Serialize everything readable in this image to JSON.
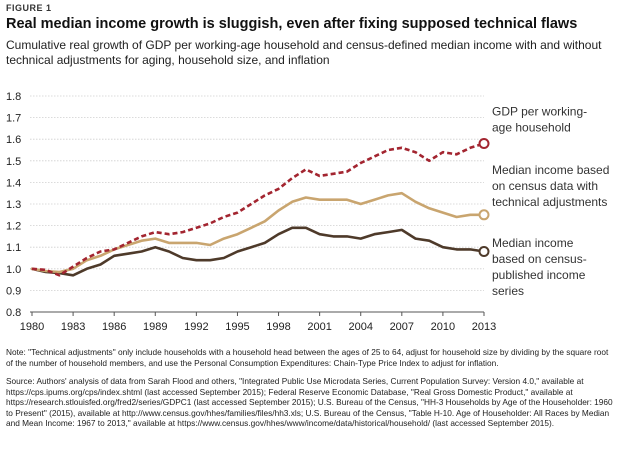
{
  "figure_label": "FIGURE 1",
  "title": "Real median income growth is sluggish, even after fixing supposed technical flaws",
  "subtitle": "Cumulative real growth of GDP per working-age household and census-defined median income with and without technical adjustments for aging, household size, and inflation",
  "chart_data": {
    "type": "line",
    "x": [
      1980,
      1981,
      1982,
      1983,
      1984,
      1985,
      1986,
      1987,
      1988,
      1989,
      1990,
      1991,
      1992,
      1993,
      1994,
      1995,
      1996,
      1997,
      1998,
      1999,
      2000,
      2001,
      2002,
      2003,
      2004,
      2005,
      2006,
      2007,
      2008,
      2009,
      2010,
      2011,
      2012,
      2013
    ],
    "xticks": [
      1980,
      1983,
      1986,
      1989,
      1992,
      1995,
      1998,
      2001,
      2004,
      2007,
      2010,
      2013
    ],
    "ylim": [
      0.8,
      1.8
    ],
    "yticks": [
      "0.8",
      "0.9",
      "1.0",
      "1.1",
      "1.2",
      "1.3",
      "1.4",
      "1.5",
      "1.6",
      "1.7",
      "1.8"
    ],
    "series": [
      {
        "name": "GDP per working-age household",
        "color": "#a32530",
        "style": "dashed",
        "values": [
          1.0,
          0.995,
          0.97,
          1.01,
          1.05,
          1.08,
          1.09,
          1.12,
          1.15,
          1.17,
          1.16,
          1.17,
          1.19,
          1.21,
          1.24,
          1.26,
          1.3,
          1.34,
          1.37,
          1.42,
          1.46,
          1.43,
          1.44,
          1.45,
          1.49,
          1.52,
          1.55,
          1.56,
          1.54,
          1.5,
          1.54,
          1.53,
          1.56,
          1.58
        ]
      },
      {
        "name": "Median income based on census data with technical adjustments",
        "color": "#c9a56f",
        "style": "solid",
        "values": [
          1.0,
          0.99,
          0.985,
          1.0,
          1.04,
          1.06,
          1.09,
          1.11,
          1.13,
          1.14,
          1.12,
          1.12,
          1.12,
          1.11,
          1.14,
          1.16,
          1.19,
          1.22,
          1.27,
          1.31,
          1.33,
          1.32,
          1.32,
          1.32,
          1.3,
          1.32,
          1.34,
          1.35,
          1.31,
          1.28,
          1.26,
          1.24,
          1.25,
          1.25
        ]
      },
      {
        "name": "Median income based on census-published income series",
        "color": "#4e3a2a",
        "style": "solid",
        "values": [
          1.0,
          0.985,
          0.98,
          0.97,
          1.0,
          1.02,
          1.06,
          1.07,
          1.08,
          1.1,
          1.08,
          1.05,
          1.04,
          1.04,
          1.05,
          1.08,
          1.1,
          1.12,
          1.16,
          1.19,
          1.19,
          1.16,
          1.15,
          1.15,
          1.14,
          1.16,
          1.17,
          1.18,
          1.14,
          1.13,
          1.1,
          1.09,
          1.09,
          1.08
        ]
      }
    ],
    "labels": [
      {
        "lines": [
          "GDP per working-",
          "age household"
        ]
      },
      {
        "lines": [
          "Median income based",
          "on census data with",
          "technical adjustments"
        ]
      },
      {
        "lines": [
          "Median income",
          "based on census-",
          "published income",
          "series"
        ]
      }
    ]
  },
  "note": "Note: \"Technical adjustments\" only include households with a household head between the ages of 25 to 64, adjust for household size by dividing by the square root of the number of household members, and use the Personal Consumption Expenditures: Chain-Type Price Index to adjust for inflation.",
  "source": "Source: Authors' analysis of data from Sarah Flood and others, \"Integrated Public Use Microdata Series, Current Population Survey: Version 4.0,\" available at https://cps.ipums.org/cps/index.shtml (last accessed September 2015); Federal Reserve Economic Database, \"Real Gross Domestic Product,\" available at https://research.stlouisfed.org/fred2/series/GDPC1 (last accessed September 2015); U.S. Bureau of the Census, \"HH-3 Households by Age of the Householder: 1960 to Present\" (2015), available at http://www.census.gov/hhes/families/files/hh3.xls; U.S. Bureau of the Census, \"Table H-10. Age of Householder: All Races by Median and Mean Income: 1967 to 2013,\" available at https://www.census.gov/hhes/www/income/data/historical/household/ (last accessed September 2015)."
}
